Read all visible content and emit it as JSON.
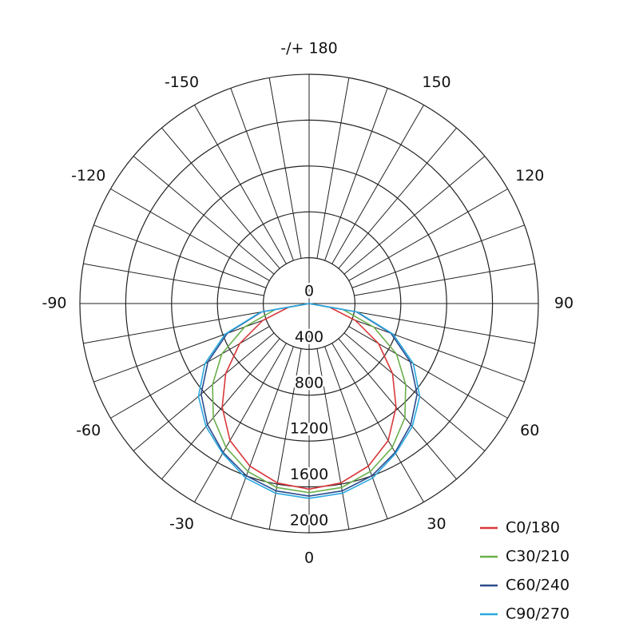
{
  "chart_data": {
    "type": "polar",
    "rlim": [
      0,
      2000
    ],
    "rticks": [
      0,
      400,
      800,
      1200,
      1600,
      2000
    ],
    "thetaticks": [
      {
        "value": 180,
        "label": "-/+ 180"
      },
      150,
      120,
      90,
      60,
      30,
      0,
      -30,
      -60,
      -90,
      -120,
      -150
    ],
    "theta": [
      -90,
      -80,
      -70,
      -60,
      -50,
      -40,
      -30,
      -20,
      -10,
      0,
      10,
      20,
      30,
      40,
      50,
      60,
      70,
      80,
      90
    ],
    "series": [
      {
        "name": "C0/180",
        "color": "#d9383a",
        "values": [
          0,
          180,
          430,
          700,
          950,
          1180,
          1380,
          1510,
          1590,
          1620,
          1590,
          1510,
          1380,
          1180,
          950,
          700,
          430,
          180,
          0
        ]
      },
      {
        "name": "C30/210",
        "color": "#6ab04c",
        "values": [
          0,
          300,
          600,
          880,
          1100,
          1300,
          1450,
          1560,
          1630,
          1650,
          1630,
          1560,
          1450,
          1300,
          1100,
          880,
          600,
          300,
          0
        ]
      },
      {
        "name": "C60/240",
        "color": "#2b4c8c",
        "values": [
          0,
          420,
          760,
          1020,
          1230,
          1380,
          1500,
          1600,
          1660,
          1680,
          1660,
          1600,
          1500,
          1380,
          1230,
          1020,
          760,
          420,
          0
        ]
      },
      {
        "name": "C90/270",
        "color": "#2aa8e0",
        "values": [
          0,
          430,
          780,
          1050,
          1260,
          1400,
          1510,
          1620,
          1680,
          1700,
          1680,
          1620,
          1510,
          1400,
          1260,
          1050,
          780,
          430,
          0
        ]
      }
    ]
  }
}
